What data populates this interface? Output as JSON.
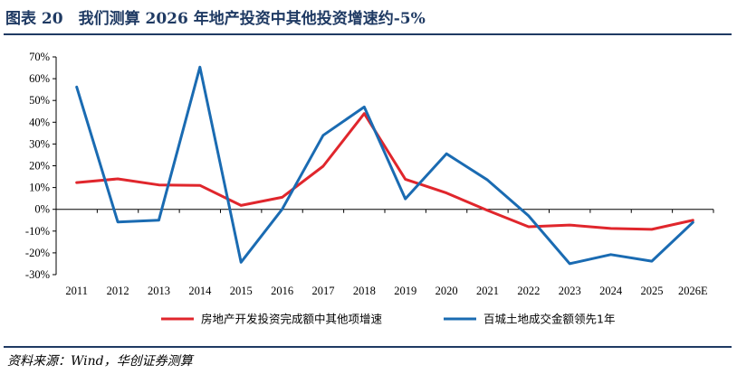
{
  "figure": {
    "title": "图表 20　我们测算 2026 年地产投资中其他投资增速约-5%",
    "source": "资料来源：Wind，华创证券测算"
  },
  "chart_data": {
    "type": "line",
    "categories": [
      "2011",
      "2012",
      "2013",
      "2014",
      "2015",
      "2016",
      "2017",
      "2018",
      "2019",
      "2020",
      "2021",
      "2022",
      "2023",
      "2024",
      "2025",
      "2026E"
    ],
    "ylim": [
      -30,
      70
    ],
    "yticks": [
      -30,
      -20,
      -10,
      0,
      10,
      20,
      30,
      40,
      50,
      60,
      70
    ],
    "ytick_labels": [
      "-30%",
      "-20%",
      "-10%",
      "0%",
      "10%",
      "20%",
      "30%",
      "40%",
      "50%",
      "60%",
      "70%"
    ],
    "grid": false,
    "legend_position": "bottom",
    "series": [
      {
        "name": "房地产开发投资完成额中其他项增速",
        "color": "#e0262c",
        "values": [
          12.3,
          14.0,
          11.2,
          11.0,
          1.8,
          5.5,
          19.8,
          44.0,
          13.8,
          7.5,
          -0.5,
          -8.0,
          -7.2,
          -8.8,
          -9.2,
          -5.0
        ]
      },
      {
        "name": "百城土地成交金额领先1年",
        "color": "#1a6bb2",
        "values": [
          56.2,
          -5.8,
          -5.0,
          65.3,
          -24.3,
          0.0,
          34.0,
          47.0,
          4.8,
          25.5,
          13.5,
          -3.0,
          -25.0,
          -20.8,
          -23.8,
          -6.0
        ]
      }
    ]
  }
}
